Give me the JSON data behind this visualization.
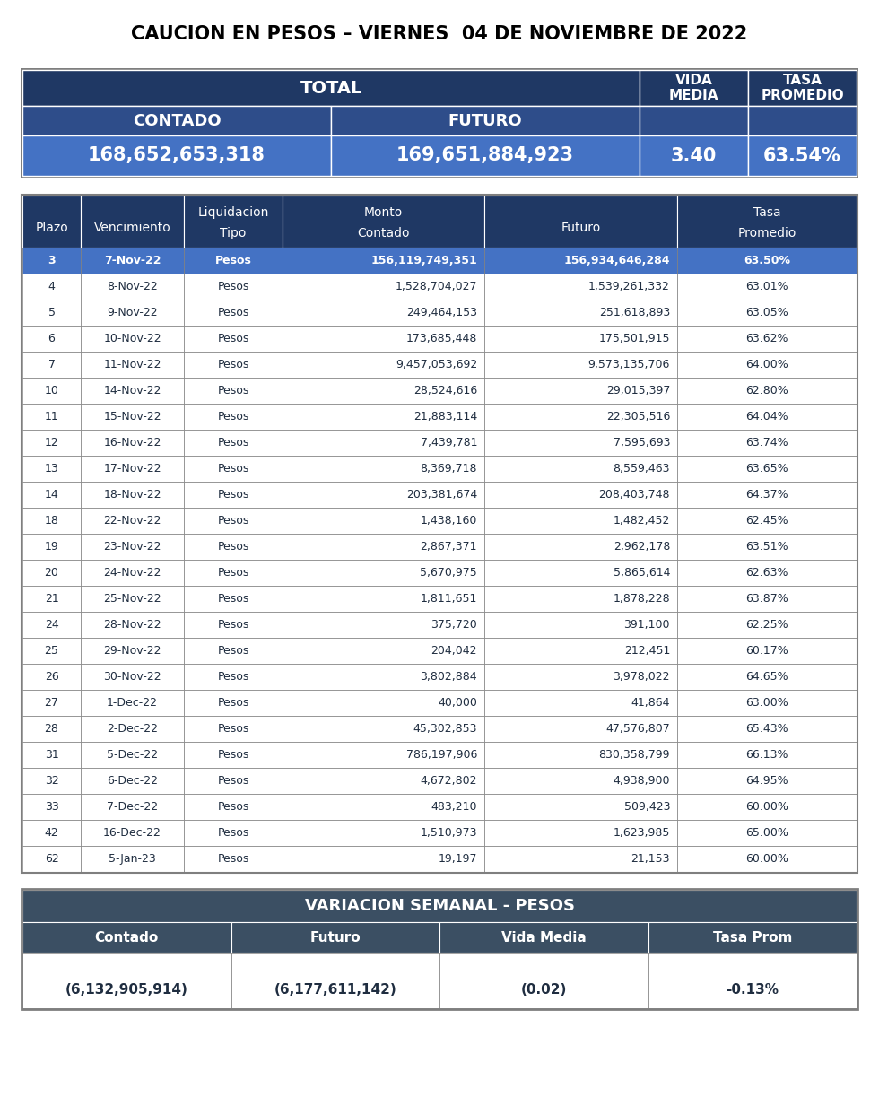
{
  "title": "CAUCION EN PESOS – VIERNES  04 DE NOVIEMBRE DE 2022",
  "summary_sub1a": "CONTADO",
  "summary_sub1b": "FUTURO",
  "summary_val1a": "168,652,653,318",
  "summary_val1b": "169,651,884,923",
  "summary_val2": "3.40",
  "summary_val3": "63.54%",
  "hdr_line1": [
    "",
    "",
    "Liquidacion",
    "Monto",
    "",
    "Tasa"
  ],
  "hdr_line2": [
    "Plazo",
    "Vencimiento",
    "Tipo",
    "Contado",
    "Futuro",
    "Promedio"
  ],
  "rows": [
    [
      "3",
      "7-Nov-22",
      "Pesos",
      "156,119,749,351",
      "156,934,646,284",
      "63.50%"
    ],
    [
      "4",
      "8-Nov-22",
      "Pesos",
      "1,528,704,027",
      "1,539,261,332",
      "63.01%"
    ],
    [
      "5",
      "9-Nov-22",
      "Pesos",
      "249,464,153",
      "251,618,893",
      "63.05%"
    ],
    [
      "6",
      "10-Nov-22",
      "Pesos",
      "173,685,448",
      "175,501,915",
      "63.62%"
    ],
    [
      "7",
      "11-Nov-22",
      "Pesos",
      "9,457,053,692",
      "9,573,135,706",
      "64.00%"
    ],
    [
      "10",
      "14-Nov-22",
      "Pesos",
      "28,524,616",
      "29,015,397",
      "62.80%"
    ],
    [
      "11",
      "15-Nov-22",
      "Pesos",
      "21,883,114",
      "22,305,516",
      "64.04%"
    ],
    [
      "12",
      "16-Nov-22",
      "Pesos",
      "7,439,781",
      "7,595,693",
      "63.74%"
    ],
    [
      "13",
      "17-Nov-22",
      "Pesos",
      "8,369,718",
      "8,559,463",
      "63.65%"
    ],
    [
      "14",
      "18-Nov-22",
      "Pesos",
      "203,381,674",
      "208,403,748",
      "64.37%"
    ],
    [
      "18",
      "22-Nov-22",
      "Pesos",
      "1,438,160",
      "1,482,452",
      "62.45%"
    ],
    [
      "19",
      "23-Nov-22",
      "Pesos",
      "2,867,371",
      "2,962,178",
      "63.51%"
    ],
    [
      "20",
      "24-Nov-22",
      "Pesos",
      "5,670,975",
      "5,865,614",
      "62.63%"
    ],
    [
      "21",
      "25-Nov-22",
      "Pesos",
      "1,811,651",
      "1,878,228",
      "63.87%"
    ],
    [
      "24",
      "28-Nov-22",
      "Pesos",
      "375,720",
      "391,100",
      "62.25%"
    ],
    [
      "25",
      "29-Nov-22",
      "Pesos",
      "204,042",
      "212,451",
      "60.17%"
    ],
    [
      "26",
      "30-Nov-22",
      "Pesos",
      "3,802,884",
      "3,978,022",
      "64.65%"
    ],
    [
      "27",
      "1-Dec-22",
      "Pesos",
      "40,000",
      "41,864",
      "63.00%"
    ],
    [
      "28",
      "2-Dec-22",
      "Pesos",
      "45,302,853",
      "47,576,807",
      "65.43%"
    ],
    [
      "31",
      "5-Dec-22",
      "Pesos",
      "786,197,906",
      "830,358,799",
      "66.13%"
    ],
    [
      "32",
      "6-Dec-22",
      "Pesos",
      "4,672,802",
      "4,938,900",
      "64.95%"
    ],
    [
      "33",
      "7-Dec-22",
      "Pesos",
      "483,210",
      "509,423",
      "60.00%"
    ],
    [
      "42",
      "16-Dec-22",
      "Pesos",
      "1,510,973",
      "1,623,985",
      "65.00%"
    ],
    [
      "62",
      "5-Jan-23",
      "Pesos",
      "19,197",
      "21,153",
      "60.00%"
    ]
  ],
  "variacion_title": "VARIACION SEMANAL - PESOS",
  "var_headers": [
    "Contado",
    "Futuro",
    "Vida Media",
    "Tasa Prom"
  ],
  "var_values": [
    "(6,132,905,914)",
    "(6,177,611,142)",
    "(0.02)",
    "-0.13%"
  ],
  "color_dark_blue": "#1F3864",
  "color_mid_blue": "#2E4D8A",
  "color_bright_blue": "#4472C4",
  "color_var_dark": "#3B4F63",
  "color_border_gray": "#7F7F7F",
  "color_dark_text": "#1F2D40"
}
